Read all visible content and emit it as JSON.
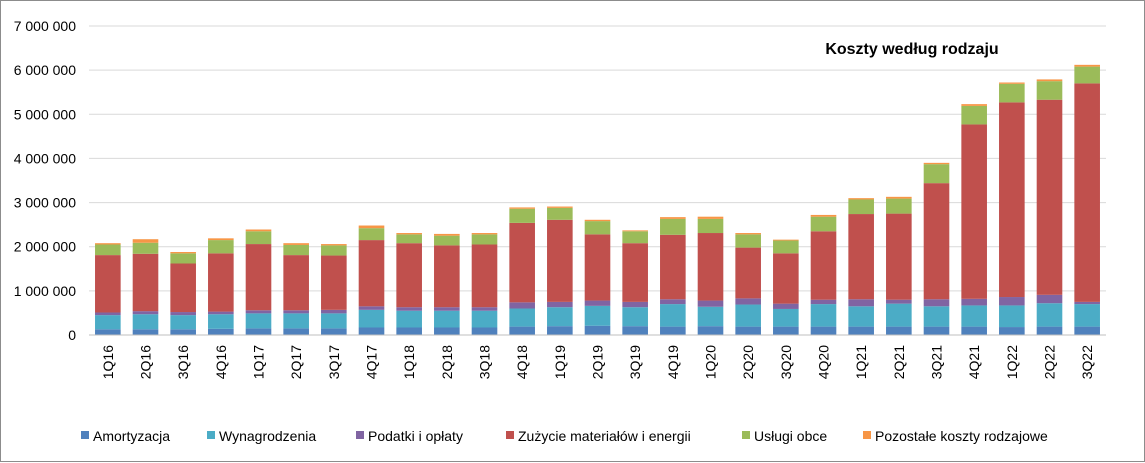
{
  "chart_data": {
    "type": "bar",
    "stacked": true,
    "title": "Koszty według rodzaju",
    "xlabel": "",
    "ylabel": "",
    "ylim": [
      0,
      7000000
    ],
    "yticks": [
      0,
      1000000,
      2000000,
      3000000,
      4000000,
      5000000,
      6000000,
      7000000
    ],
    "ytick_labels": [
      "0",
      "1 000 000",
      "2 000 000",
      "3 000 000",
      "4 000 000",
      "5 000 000",
      "6 000 000",
      "7 000 000"
    ],
    "grid": "horizontal",
    "legend_position": "bottom",
    "categories": [
      "1Q16",
      "2Q16",
      "3Q16",
      "4Q16",
      "1Q17",
      "2Q17",
      "3Q17",
      "4Q17",
      "1Q18",
      "2Q18",
      "3Q18",
      "4Q18",
      "1Q19",
      "2Q19",
      "3Q19",
      "4Q19",
      "1Q20",
      "2Q20",
      "3Q20",
      "4Q20",
      "1Q21",
      "2Q21",
      "3Q21",
      "4Q21",
      "1Q22",
      "2Q22",
      "3Q22"
    ],
    "series": [
      {
        "name": "Amortyzacja",
        "color": "#4f81bd",
        "values": [
          130000,
          130000,
          130000,
          140000,
          150000,
          150000,
          150000,
          170000,
          170000,
          170000,
          170000,
          190000,
          200000,
          210000,
          200000,
          190000,
          200000,
          190000,
          190000,
          190000,
          190000,
          190000,
          190000,
          190000,
          180000,
          190000,
          190000
        ]
      },
      {
        "name": "Wynagrodzenia",
        "color": "#4bacc6",
        "values": [
          320000,
          340000,
          320000,
          330000,
          340000,
          340000,
          340000,
          400000,
          380000,
          380000,
          380000,
          410000,
          430000,
          450000,
          430000,
          510000,
          440000,
          500000,
          400000,
          510000,
          460000,
          520000,
          460000,
          480000,
          490000,
          530000,
          510000
        ]
      },
      {
        "name": "Podatki i opłaty",
        "color": "#8064a2",
        "values": [
          60000,
          70000,
          70000,
          60000,
          70000,
          70000,
          80000,
          80000,
          80000,
          80000,
          80000,
          140000,
          120000,
          120000,
          120000,
          110000,
          140000,
          140000,
          120000,
          100000,
          160000,
          90000,
          160000,
          150000,
          190000,
          190000,
          50000
        ]
      },
      {
        "name": "Zużycie materiałów i energii",
        "color": "#c0504d",
        "values": [
          1300000,
          1300000,
          1100000,
          1320000,
          1500000,
          1250000,
          1230000,
          1500000,
          1450000,
          1400000,
          1420000,
          1800000,
          1860000,
          1500000,
          1330000,
          1460000,
          1530000,
          1150000,
          1140000,
          1550000,
          1930000,
          1950000,
          2630000,
          3950000,
          4410000,
          4420000,
          4950000
        ]
      },
      {
        "name": "Usługi obce",
        "color": "#9bbb59",
        "values": [
          240000,
          250000,
          230000,
          300000,
          290000,
          230000,
          230000,
          270000,
          200000,
          220000,
          230000,
          320000,
          270000,
          300000,
          270000,
          360000,
          320000,
          300000,
          290000,
          330000,
          330000,
          340000,
          430000,
          420000,
          420000,
          420000,
          380000
        ]
      },
      {
        "name": "Pozostałe koszty rodzajowe",
        "color": "#f79646",
        "values": [
          30000,
          80000,
          30000,
          40000,
          40000,
          40000,
          30000,
          60000,
          30000,
          40000,
          30000,
          30000,
          30000,
          30000,
          20000,
          40000,
          50000,
          30000,
          20000,
          40000,
          30000,
          40000,
          30000,
          40000,
          30000,
          40000,
          40000
        ]
      }
    ]
  }
}
